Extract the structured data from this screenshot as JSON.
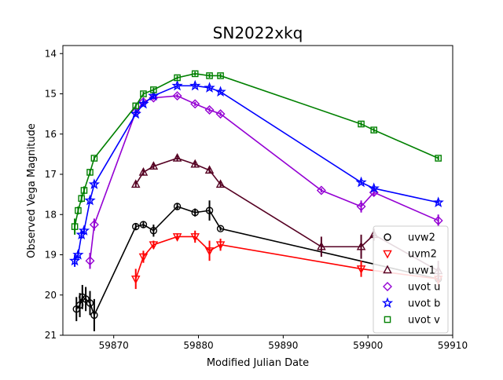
{
  "chart_data": {
    "type": "scatter",
    "title": "SN2022xkq",
    "xlabel": "Modified Julian Date",
    "ylabel": "Observed Vega Magnitude",
    "xlim": [
      59864,
      59910
    ],
    "ylim": [
      21,
      13.8
    ],
    "y_inverted": true,
    "grid": false,
    "legend_position": "lower-right",
    "xticks": [
      59870,
      59880,
      59890,
      59900,
      59910
    ],
    "xtick_labels": [
      "59870",
      "59880",
      "59890",
      "59900",
      "59910"
    ],
    "yticks": [
      14,
      15,
      16,
      17,
      18,
      19,
      20,
      21
    ],
    "ytick_labels": [
      "14",
      "15",
      "16",
      "17",
      "18",
      "19",
      "20",
      "21"
    ],
    "series": [
      {
        "name": "uvw2",
        "color": "#000000",
        "marker": "circle",
        "points": [
          {
            "x": 59865.6,
            "y": 20.35,
            "err": 0.3
          },
          {
            "x": 59866.0,
            "y": 20.25,
            "err": 0.3
          },
          {
            "x": 59866.3,
            "y": 20.05,
            "err": 0.3
          },
          {
            "x": 59866.7,
            "y": 20.1,
            "err": 0.3
          },
          {
            "x": 59867.2,
            "y": 20.2,
            "err": 0.3
          },
          {
            "x": 59867.7,
            "y": 20.5,
            "err": 0.4
          },
          {
            "x": 59872.6,
            "y": 18.3,
            "err": 0.08
          },
          {
            "x": 59873.5,
            "y": 18.25,
            "err": 0.08
          },
          {
            "x": 59874.7,
            "y": 18.4,
            "err": 0.15
          },
          {
            "x": 59877.5,
            "y": 17.8,
            "err": 0.08
          },
          {
            "x": 59879.6,
            "y": 17.95,
            "err": 0.1
          },
          {
            "x": 59881.3,
            "y": 17.9,
            "err": 0.25
          },
          {
            "x": 59882.6,
            "y": 18.35,
            "err": 0.05
          },
          {
            "x": 59908.3,
            "y": 19.6,
            "err": 0.15
          }
        ]
      },
      {
        "name": "uvm2",
        "color": "#ff0000",
        "marker": "triangle-down",
        "points": [
          {
            "x": 59872.6,
            "y": 19.6,
            "err": 0.25
          },
          {
            "x": 59873.5,
            "y": 19.05,
            "err": 0.15
          },
          {
            "x": 59874.7,
            "y": 18.75,
            "err": 0.1
          },
          {
            "x": 59877.5,
            "y": 18.55,
            "err": 0.08
          },
          {
            "x": 59879.6,
            "y": 18.55,
            "err": 0.15
          },
          {
            "x": 59881.3,
            "y": 18.9,
            "err": 0.25
          },
          {
            "x": 59882.6,
            "y": 18.75,
            "err": 0.15
          },
          {
            "x": 59899.2,
            "y": 19.35,
            "err": 0.2
          },
          {
            "x": 59908.3,
            "y": 19.6,
            "err": 0.2
          }
        ]
      },
      {
        "name": "uvw1",
        "color": "#550022",
        "marker": "triangle-up",
        "points": [
          {
            "x": 59872.6,
            "y": 17.25,
            "err": 0.08
          },
          {
            "x": 59873.5,
            "y": 16.95,
            "err": 0.08
          },
          {
            "x": 59874.7,
            "y": 16.8,
            "err": 0.08
          },
          {
            "x": 59877.5,
            "y": 16.6,
            "err": 0.08
          },
          {
            "x": 59879.6,
            "y": 16.75,
            "err": 0.08
          },
          {
            "x": 59881.3,
            "y": 16.9,
            "err": 0.08
          },
          {
            "x": 59882.6,
            "y": 17.25,
            "err": 0.08
          },
          {
            "x": 59894.5,
            "y": 18.8,
            "err": 0.25
          },
          {
            "x": 59899.2,
            "y": 18.8,
            "err": 0.3
          },
          {
            "x": 59900.7,
            "y": 18.5,
            "err": 0.15
          },
          {
            "x": 59908.3,
            "y": 19.4,
            "err": 0.25
          }
        ]
      },
      {
        "name": "uvot u",
        "color": "#9400d3",
        "marker": "diamond",
        "points": [
          {
            "x": 59867.2,
            "y": 19.15,
            "err": 0.2
          },
          {
            "x": 59867.7,
            "y": 18.25,
            "err": 0.15
          },
          {
            "x": 59872.6,
            "y": 15.45,
            "err": 0.05
          },
          {
            "x": 59873.5,
            "y": 15.2,
            "err": 0.05
          },
          {
            "x": 59874.7,
            "y": 15.1,
            "err": 0.05
          },
          {
            "x": 59877.5,
            "y": 15.05,
            "err": 0.05
          },
          {
            "x": 59879.6,
            "y": 15.25,
            "err": 0.05
          },
          {
            "x": 59881.3,
            "y": 15.4,
            "err": 0.05
          },
          {
            "x": 59882.6,
            "y": 15.5,
            "err": 0.05
          },
          {
            "x": 59894.5,
            "y": 17.4,
            "err": 0.05
          },
          {
            "x": 59899.2,
            "y": 17.8,
            "err": 0.15
          },
          {
            "x": 59900.7,
            "y": 17.45,
            "err": 0.1
          },
          {
            "x": 59908.3,
            "y": 18.15,
            "err": 0.15
          }
        ]
      },
      {
        "name": "uvot b",
        "color": "#0000ff",
        "marker": "star",
        "points": [
          {
            "x": 59865.4,
            "y": 19.15,
            "err": 0.15
          },
          {
            "x": 59865.8,
            "y": 19.0,
            "err": 0.1
          },
          {
            "x": 59866.2,
            "y": 18.5,
            "err": 0.1
          },
          {
            "x": 59866.5,
            "y": 18.4,
            "err": 0.1
          },
          {
            "x": 59867.2,
            "y": 17.65,
            "err": 0.08
          },
          {
            "x": 59867.7,
            "y": 17.25,
            "err": 0.05
          },
          {
            "x": 59872.6,
            "y": 15.5,
            "err": 0.05
          },
          {
            "x": 59873.5,
            "y": 15.25,
            "err": 0.05
          },
          {
            "x": 59874.7,
            "y": 15.05,
            "err": 0.05
          },
          {
            "x": 59877.5,
            "y": 14.8,
            "err": 0.05
          },
          {
            "x": 59879.6,
            "y": 14.8,
            "err": 0.05
          },
          {
            "x": 59881.3,
            "y": 14.85,
            "err": 0.05
          },
          {
            "x": 59882.6,
            "y": 14.95,
            "err": 0.05
          },
          {
            "x": 59899.2,
            "y": 17.2,
            "err": 0.05
          },
          {
            "x": 59900.7,
            "y": 17.35,
            "err": 0.05
          },
          {
            "x": 59908.3,
            "y": 17.7,
            "err": 0.05
          }
        ]
      },
      {
        "name": "uvot v",
        "color": "#008000",
        "marker": "square",
        "points": [
          {
            "x": 59865.4,
            "y": 18.3,
            "err": 0.2
          },
          {
            "x": 59865.8,
            "y": 17.9,
            "err": 0.1
          },
          {
            "x": 59866.2,
            "y": 17.6,
            "err": 0.1
          },
          {
            "x": 59866.5,
            "y": 17.4,
            "err": 0.1
          },
          {
            "x": 59867.2,
            "y": 16.95,
            "err": 0.08
          },
          {
            "x": 59867.7,
            "y": 16.6,
            "err": 0.05
          },
          {
            "x": 59872.6,
            "y": 15.3,
            "err": 0.05
          },
          {
            "x": 59873.5,
            "y": 15.0,
            "err": 0.05
          },
          {
            "x": 59874.7,
            "y": 14.9,
            "err": 0.05
          },
          {
            "x": 59877.5,
            "y": 14.6,
            "err": 0.05
          },
          {
            "x": 59879.6,
            "y": 14.5,
            "err": 0.05
          },
          {
            "x": 59881.3,
            "y": 14.55,
            "err": 0.05
          },
          {
            "x": 59882.6,
            "y": 14.55,
            "err": 0.05
          },
          {
            "x": 59899.2,
            "y": 15.75,
            "err": 0.05
          },
          {
            "x": 59900.7,
            "y": 15.9,
            "err": 0.05
          },
          {
            "x": 59908.3,
            "y": 16.6,
            "err": 0.05
          }
        ]
      }
    ]
  }
}
